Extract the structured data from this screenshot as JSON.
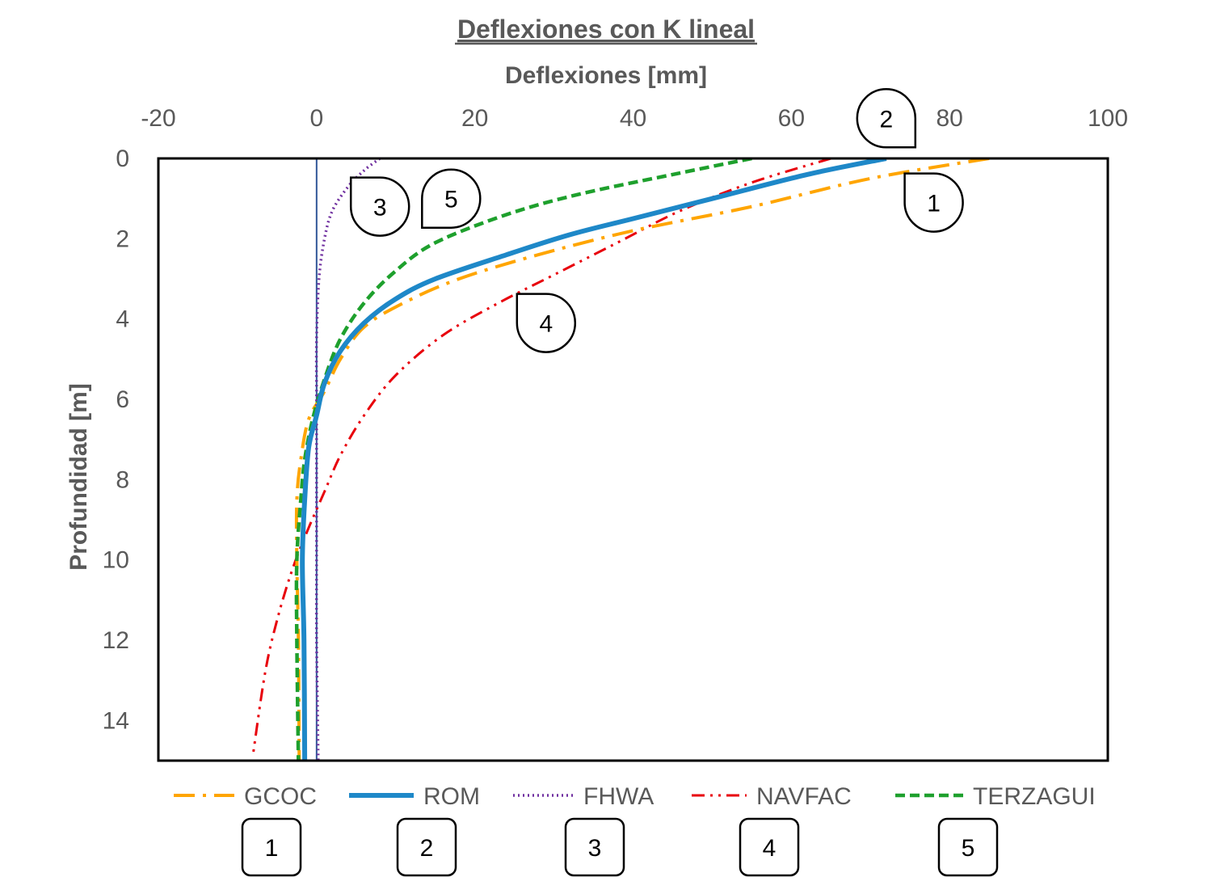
{
  "chart_data": {
    "type": "line",
    "title": "Deflexiones con K lineal",
    "xlabel": "Deflexiones [mm]",
    "ylabel": "Profundidad [m]",
    "xlim": [
      -20,
      100
    ],
    "ylim": [
      0,
      15
    ],
    "x_ticks": [
      "-20",
      "0",
      "20",
      "40",
      "60",
      "80",
      "100"
    ],
    "y_ticks": [
      "0",
      "2",
      "4",
      "6",
      "8",
      "10",
      "12",
      "14"
    ],
    "x_axis_position": "top",
    "y_axis_inverted": true,
    "grid": false,
    "legend_position": "bottom",
    "series": [
      {
        "name": "GCOC",
        "number": "1",
        "color": "#FFA500",
        "dash": "long-dash-dot",
        "points": [
          [
            85,
            0
          ],
          [
            70,
            0.5
          ],
          [
            55,
            1.2
          ],
          [
            40,
            1.8
          ],
          [
            28,
            2.4
          ],
          [
            18,
            3.0
          ],
          [
            11,
            3.6
          ],
          [
            6,
            4.2
          ],
          [
            3,
            5.0
          ],
          [
            1,
            5.8
          ],
          [
            -1,
            6.5
          ],
          [
            -2,
            7.5
          ],
          [
            -2.5,
            8.5
          ],
          [
            -2.5,
            10
          ],
          [
            -2.3,
            12
          ],
          [
            -2.2,
            15
          ]
        ]
      },
      {
        "name": "ROM",
        "number": "2",
        "color": "#1E88C8",
        "dash": "solid",
        "points": [
          [
            72,
            0
          ],
          [
            62,
            0.4
          ],
          [
            50,
            1.0
          ],
          [
            40,
            1.5
          ],
          [
            32,
            1.9
          ],
          [
            24,
            2.4
          ],
          [
            15,
            3.0
          ],
          [
            10,
            3.5
          ],
          [
            6,
            4.1
          ],
          [
            3,
            4.8
          ],
          [
            1,
            5.6
          ],
          [
            0,
            6.4
          ],
          [
            -1,
            7.2
          ],
          [
            -1.5,
            8.5
          ],
          [
            -1.8,
            10
          ],
          [
            -1.6,
            12
          ],
          [
            -1.5,
            15
          ]
        ]
      },
      {
        "name": "FHWA",
        "number": "3",
        "color": "#7030A0",
        "dash": "dotted",
        "points": [
          [
            8,
            0
          ],
          [
            6,
            0.3
          ],
          [
            4,
            0.7
          ],
          [
            2,
            1.3
          ],
          [
            1,
            2.0
          ],
          [
            0.3,
            3.0
          ],
          [
            0,
            4.5
          ],
          [
            0,
            6
          ],
          [
            0,
            8
          ],
          [
            0,
            10
          ],
          [
            0,
            12
          ],
          [
            0.2,
            15
          ]
        ]
      },
      {
        "name": "NAVFAC",
        "number": "4",
        "color": "#E8000B",
        "dash": "dash-dot-dot",
        "points": [
          [
            65,
            0
          ],
          [
            55,
            0.6
          ],
          [
            46,
            1.3
          ],
          [
            38,
            2.1
          ],
          [
            30,
            2.9
          ],
          [
            23,
            3.6
          ],
          [
            16,
            4.4
          ],
          [
            10,
            5.4
          ],
          [
            6,
            6.4
          ],
          [
            3,
            7.4
          ],
          [
            1,
            8.3
          ],
          [
            -1,
            9.2
          ],
          [
            -3,
            10.2
          ],
          [
            -5,
            11.5
          ],
          [
            -6.5,
            12.8
          ],
          [
            -8,
            14.8
          ]
        ]
      },
      {
        "name": "TERZAGUI",
        "number": "5",
        "color": "#1EA02D",
        "dash": "dashed",
        "points": [
          [
            55,
            0
          ],
          [
            45,
            0.4
          ],
          [
            33,
            0.9
          ],
          [
            24,
            1.4
          ],
          [
            15,
            2.1
          ],
          [
            10,
            2.8
          ],
          [
            6,
            3.6
          ],
          [
            3,
            4.5
          ],
          [
            1,
            5.5
          ],
          [
            -0.5,
            6.5
          ],
          [
            -1.5,
            7.5
          ],
          [
            -2,
            8.5
          ],
          [
            -2.5,
            10
          ],
          [
            -2.5,
            12
          ],
          [
            -2.3,
            15
          ]
        ]
      }
    ],
    "callouts": [
      {
        "label": "1",
        "x": 78,
        "y": 1.1,
        "orientation": "up-left"
      },
      {
        "label": "2",
        "x": 72,
        "y": -1.0,
        "orientation": "down"
      },
      {
        "label": "3",
        "x": 8,
        "y": 1.2,
        "orientation": "up-left"
      },
      {
        "label": "5",
        "x": 17,
        "y": 1.0,
        "orientation": "down-right"
      },
      {
        "label": "4",
        "x": 29,
        "y": 4.1,
        "orientation": "up-left"
      }
    ]
  }
}
